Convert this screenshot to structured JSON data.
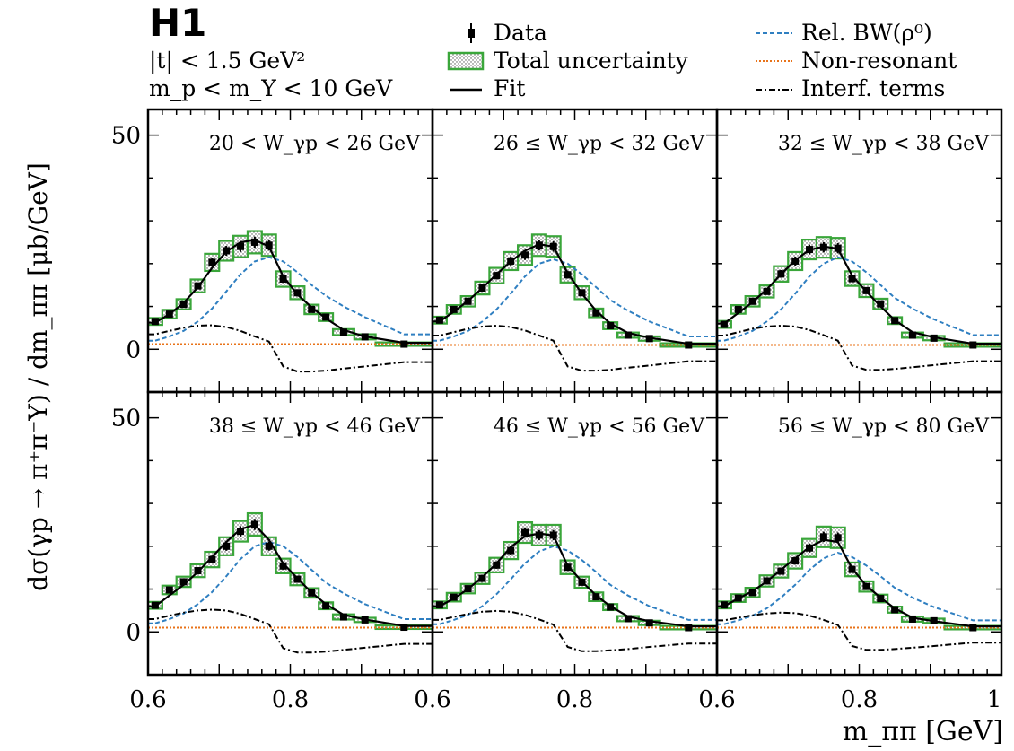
{
  "logo": "H1",
  "header": {
    "line1": "|t| < 1.5 GeV²",
    "line2": "m_p < m_Y < 10 GeV"
  },
  "legend": {
    "data": "Data",
    "total_uncertainty": "Total uncertainty",
    "fit": "Fit",
    "rel_bw": "Rel. BW(ρ⁰)",
    "non_resonant": "Non-resonant",
    "interf": "Interf. terms"
  },
  "axes": {
    "ylabel": "dσ(γp → π⁺π⁻Y) / dm_ππ  [μb/GeV]",
    "xlabel": "m_ππ  [GeV]",
    "xlim": [
      0.6,
      1.0
    ],
    "ylim": [
      -10,
      56
    ],
    "yticks": [
      "0",
      "50"
    ],
    "xticks_panel": [
      "0.6",
      "0.8"
    ],
    "xtick_last": "1"
  },
  "colors": {
    "data": "#000000",
    "uncert_box": "#3aa63a",
    "fit": "#000000",
    "rel_bw": "#2f7fc1",
    "non_resonant": "#e8731a",
    "interf": "#000000"
  },
  "chart_data": {
    "type": "scatter",
    "x_bins": [
      0.61,
      0.63,
      0.65,
      0.67,
      0.69,
      0.71,
      0.73,
      0.75,
      0.77,
      0.79,
      0.81,
      0.83,
      0.85,
      0.875,
      0.905,
      0.96
    ],
    "x_half_widths": [
      0.01,
      0.01,
      0.01,
      0.01,
      0.01,
      0.01,
      0.01,
      0.01,
      0.01,
      0.01,
      0.01,
      0.01,
      0.01,
      0.015,
      0.015,
      0.04
    ],
    "panels": [
      {
        "label": "20 < W_γp < 26 GeV",
        "values": [
          6.5,
          8.2,
          10.5,
          14.8,
          20.3,
          23.0,
          24.0,
          25.0,
          24.3,
          16.4,
          13.2,
          9.3,
          7.5,
          4.0,
          2.9,
          1.2
        ],
        "uncert": [
          0.8,
          1.0,
          1.2,
          1.5,
          2.0,
          2.3,
          2.5,
          2.6,
          2.5,
          1.8,
          1.5,
          1.1,
          0.9,
          0.7,
          0.6,
          0.4
        ],
        "fit": [
          6.2,
          8.2,
          10.8,
          14.5,
          19.0,
          22.8,
          25.0,
          25.5,
          24.0,
          17.0,
          12.8,
          9.8,
          7.2,
          4.5,
          3.0,
          1.5
        ],
        "rel_bw": [
          2.0,
          3.0,
          4.3,
          6.5,
          9.5,
          13.5,
          17.5,
          20.5,
          21.5,
          20.5,
          18.0,
          15.0,
          12.5,
          10.0,
          7.5,
          3.5
        ],
        "non_res": [
          1.2,
          1.2,
          1.2,
          1.2,
          1.2,
          1.2,
          1.2,
          1.2,
          1.2,
          1.2,
          1.2,
          1.2,
          1.2,
          1.2,
          1.2,
          1.2
        ],
        "interf": [
          3.5,
          4.3,
          5.0,
          5.5,
          5.6,
          5.2,
          4.3,
          3.0,
          1.8,
          -4.0,
          -5.2,
          -5.2,
          -5.0,
          -4.5,
          -4.0,
          -3.0
        ]
      },
      {
        "label": "26 ≤ W_γp < 32 GeV",
        "values": [
          6.8,
          9.3,
          11.2,
          14.3,
          17.2,
          20.6,
          22.0,
          24.3,
          24.0,
          17.4,
          13.2,
          8.5,
          5.5,
          3.3,
          2.5,
          1.0
        ],
        "uncert": [
          0.8,
          1.0,
          1.2,
          1.5,
          1.8,
          2.1,
          2.3,
          2.5,
          2.4,
          1.8,
          1.5,
          1.0,
          0.8,
          0.6,
          0.5,
          0.4
        ],
        "fit": [
          6.5,
          8.8,
          11.3,
          14.3,
          17.5,
          20.5,
          23.0,
          24.5,
          24.0,
          17.8,
          13.0,
          9.0,
          6.0,
          3.8,
          2.7,
          1.3
        ],
        "rel_bw": [
          2.0,
          3.0,
          4.3,
          6.5,
          9.3,
          13.0,
          17.0,
          20.0,
          21.0,
          20.0,
          17.5,
          14.5,
          11.5,
          9.0,
          6.5,
          3.0
        ],
        "non_res": [
          1.0,
          1.0,
          1.0,
          1.0,
          1.0,
          1.0,
          1.0,
          1.0,
          1.0,
          1.0,
          1.0,
          1.0,
          1.0,
          1.0,
          1.0,
          1.0
        ],
        "interf": [
          3.2,
          4.0,
          4.8,
          5.3,
          5.5,
          5.2,
          4.4,
          3.2,
          2.0,
          -4.0,
          -5.0,
          -5.0,
          -4.8,
          -4.3,
          -3.8,
          -2.8
        ]
      },
      {
        "label": "32 ≤ W_γp < 38 GeV",
        "values": [
          5.8,
          9.3,
          11.2,
          13.5,
          17.6,
          20.6,
          23.3,
          23.8,
          23.6,
          16.5,
          13.7,
          10.6,
          6.7,
          3.3,
          2.6,
          1.0
        ],
        "uncert": [
          0.8,
          1.0,
          1.2,
          1.4,
          1.8,
          2.1,
          2.3,
          2.4,
          2.4,
          1.7,
          1.5,
          1.2,
          0.8,
          0.6,
          0.5,
          0.4
        ],
        "fit": [
          6.0,
          8.5,
          11.0,
          14.0,
          17.5,
          20.8,
          23.2,
          24.0,
          23.5,
          17.2,
          13.5,
          10.0,
          6.8,
          4.0,
          2.8,
          1.3
        ],
        "rel_bw": [
          2.0,
          3.0,
          4.3,
          6.5,
          9.3,
          13.0,
          17.0,
          20.0,
          21.5,
          20.5,
          18.0,
          15.0,
          12.0,
          9.5,
          7.0,
          3.3
        ],
        "non_res": [
          1.0,
          1.0,
          1.0,
          1.0,
          1.0,
          1.0,
          1.0,
          1.0,
          1.0,
          1.0,
          1.0,
          1.0,
          1.0,
          1.0,
          1.0,
          1.0
        ],
        "interf": [
          3.2,
          4.0,
          4.8,
          5.3,
          5.5,
          5.3,
          4.5,
          3.3,
          2.0,
          -3.8,
          -4.8,
          -4.8,
          -4.6,
          -4.2,
          -3.7,
          -2.8
        ]
      },
      {
        "label": "38 ≤ W_γp < 46 GeV",
        "values": [
          6.2,
          9.8,
          11.7,
          14.3,
          16.9,
          20.0,
          23.5,
          25.1,
          20.0,
          15.4,
          12.3,
          9.1,
          6.1,
          3.5,
          2.8,
          1.1
        ],
        "uncert": [
          0.8,
          1.0,
          1.2,
          1.5,
          1.8,
          2.1,
          2.4,
          2.6,
          2.1,
          1.7,
          1.4,
          1.1,
          0.8,
          0.6,
          0.5,
          0.4
        ],
        "fit": [
          6.0,
          8.5,
          11.0,
          14.0,
          17.5,
          21.0,
          24.0,
          25.0,
          21.5,
          16.0,
          12.5,
          9.2,
          6.5,
          4.0,
          2.9,
          1.4
        ],
        "rel_bw": [
          2.0,
          3.0,
          4.3,
          6.5,
          9.3,
          13.0,
          17.0,
          20.0,
          21.0,
          20.0,
          17.5,
          14.5,
          11.5,
          9.0,
          6.5,
          3.0
        ],
        "non_res": [
          1.0,
          1.0,
          1.0,
          1.0,
          1.0,
          1.0,
          1.0,
          1.0,
          1.0,
          1.0,
          1.0,
          1.0,
          1.0,
          1.0,
          1.0,
          1.0
        ],
        "interf": [
          3.0,
          3.8,
          4.5,
          5.0,
          5.2,
          5.0,
          4.2,
          3.0,
          1.8,
          -3.8,
          -4.8,
          -4.8,
          -4.6,
          -4.2,
          -3.7,
          -2.8
        ]
      },
      {
        "label": "46 ≤ W_γp < 56 GeV",
        "values": [
          6.3,
          8.1,
          10.1,
          12.5,
          15.6,
          19.0,
          23.2,
          22.6,
          22.6,
          15.1,
          11.6,
          8.2,
          5.8,
          3.1,
          2.1,
          1.0
        ],
        "uncert": [
          0.8,
          1.0,
          1.1,
          1.3,
          1.7,
          2.0,
          2.4,
          2.4,
          2.4,
          1.6,
          1.3,
          1.0,
          0.7,
          0.6,
          0.5,
          0.4
        ],
        "fit": [
          6.0,
          7.8,
          10.0,
          12.8,
          16.0,
          19.8,
          22.3,
          23.0,
          22.5,
          15.5,
          11.8,
          8.5,
          6.0,
          3.6,
          2.5,
          1.3
        ],
        "rel_bw": [
          1.8,
          2.8,
          4.0,
          6.0,
          8.8,
          12.3,
          16.0,
          18.8,
          20.0,
          19.0,
          16.8,
          14.0,
          11.0,
          8.5,
          6.0,
          2.8
        ],
        "non_res": [
          1.0,
          1.0,
          1.0,
          1.0,
          1.0,
          1.0,
          1.0,
          1.0,
          1.0,
          1.0,
          1.0,
          1.0,
          1.0,
          1.0,
          1.0,
          1.0
        ],
        "interf": [
          2.8,
          3.5,
          4.2,
          4.7,
          4.9,
          4.7,
          4.0,
          2.9,
          1.7,
          -3.5,
          -4.5,
          -4.5,
          -4.3,
          -4.0,
          -3.5,
          -2.7
        ]
      },
      {
        "label": "56 ≤ W_γp < 80 GeV",
        "values": [
          6.3,
          7.9,
          9.2,
          11.9,
          14.2,
          16.6,
          19.6,
          22.2,
          22.0,
          14.6,
          10.6,
          7.8,
          5.2,
          3.0,
          2.6,
          1.0
        ],
        "uncert": [
          0.8,
          0.9,
          1.1,
          1.3,
          1.5,
          1.8,
          2.1,
          2.4,
          2.4,
          1.6,
          1.2,
          0.9,
          0.7,
          0.6,
          0.5,
          0.4
        ],
        "fit": [
          6.0,
          7.8,
          9.5,
          11.8,
          14.5,
          17.2,
          19.8,
          21.5,
          21.0,
          14.8,
          10.8,
          8.0,
          5.5,
          3.3,
          2.5,
          1.3
        ],
        "rel_bw": [
          1.8,
          2.7,
          3.8,
          5.5,
          8.0,
          11.0,
          14.5,
          17.2,
          18.5,
          17.5,
          15.5,
          13.0,
          10.3,
          8.0,
          5.8,
          2.7
        ],
        "non_res": [
          1.0,
          1.0,
          1.0,
          1.0,
          1.0,
          1.0,
          1.0,
          1.0,
          1.0,
          1.0,
          1.0,
          1.0,
          1.0,
          1.0,
          1.0,
          1.0
        ],
        "interf": [
          2.7,
          3.3,
          3.9,
          4.3,
          4.5,
          4.4,
          3.8,
          2.8,
          1.6,
          -3.3,
          -4.2,
          -4.2,
          -4.0,
          -3.7,
          -3.3,
          -2.5
        ]
      }
    ]
  }
}
